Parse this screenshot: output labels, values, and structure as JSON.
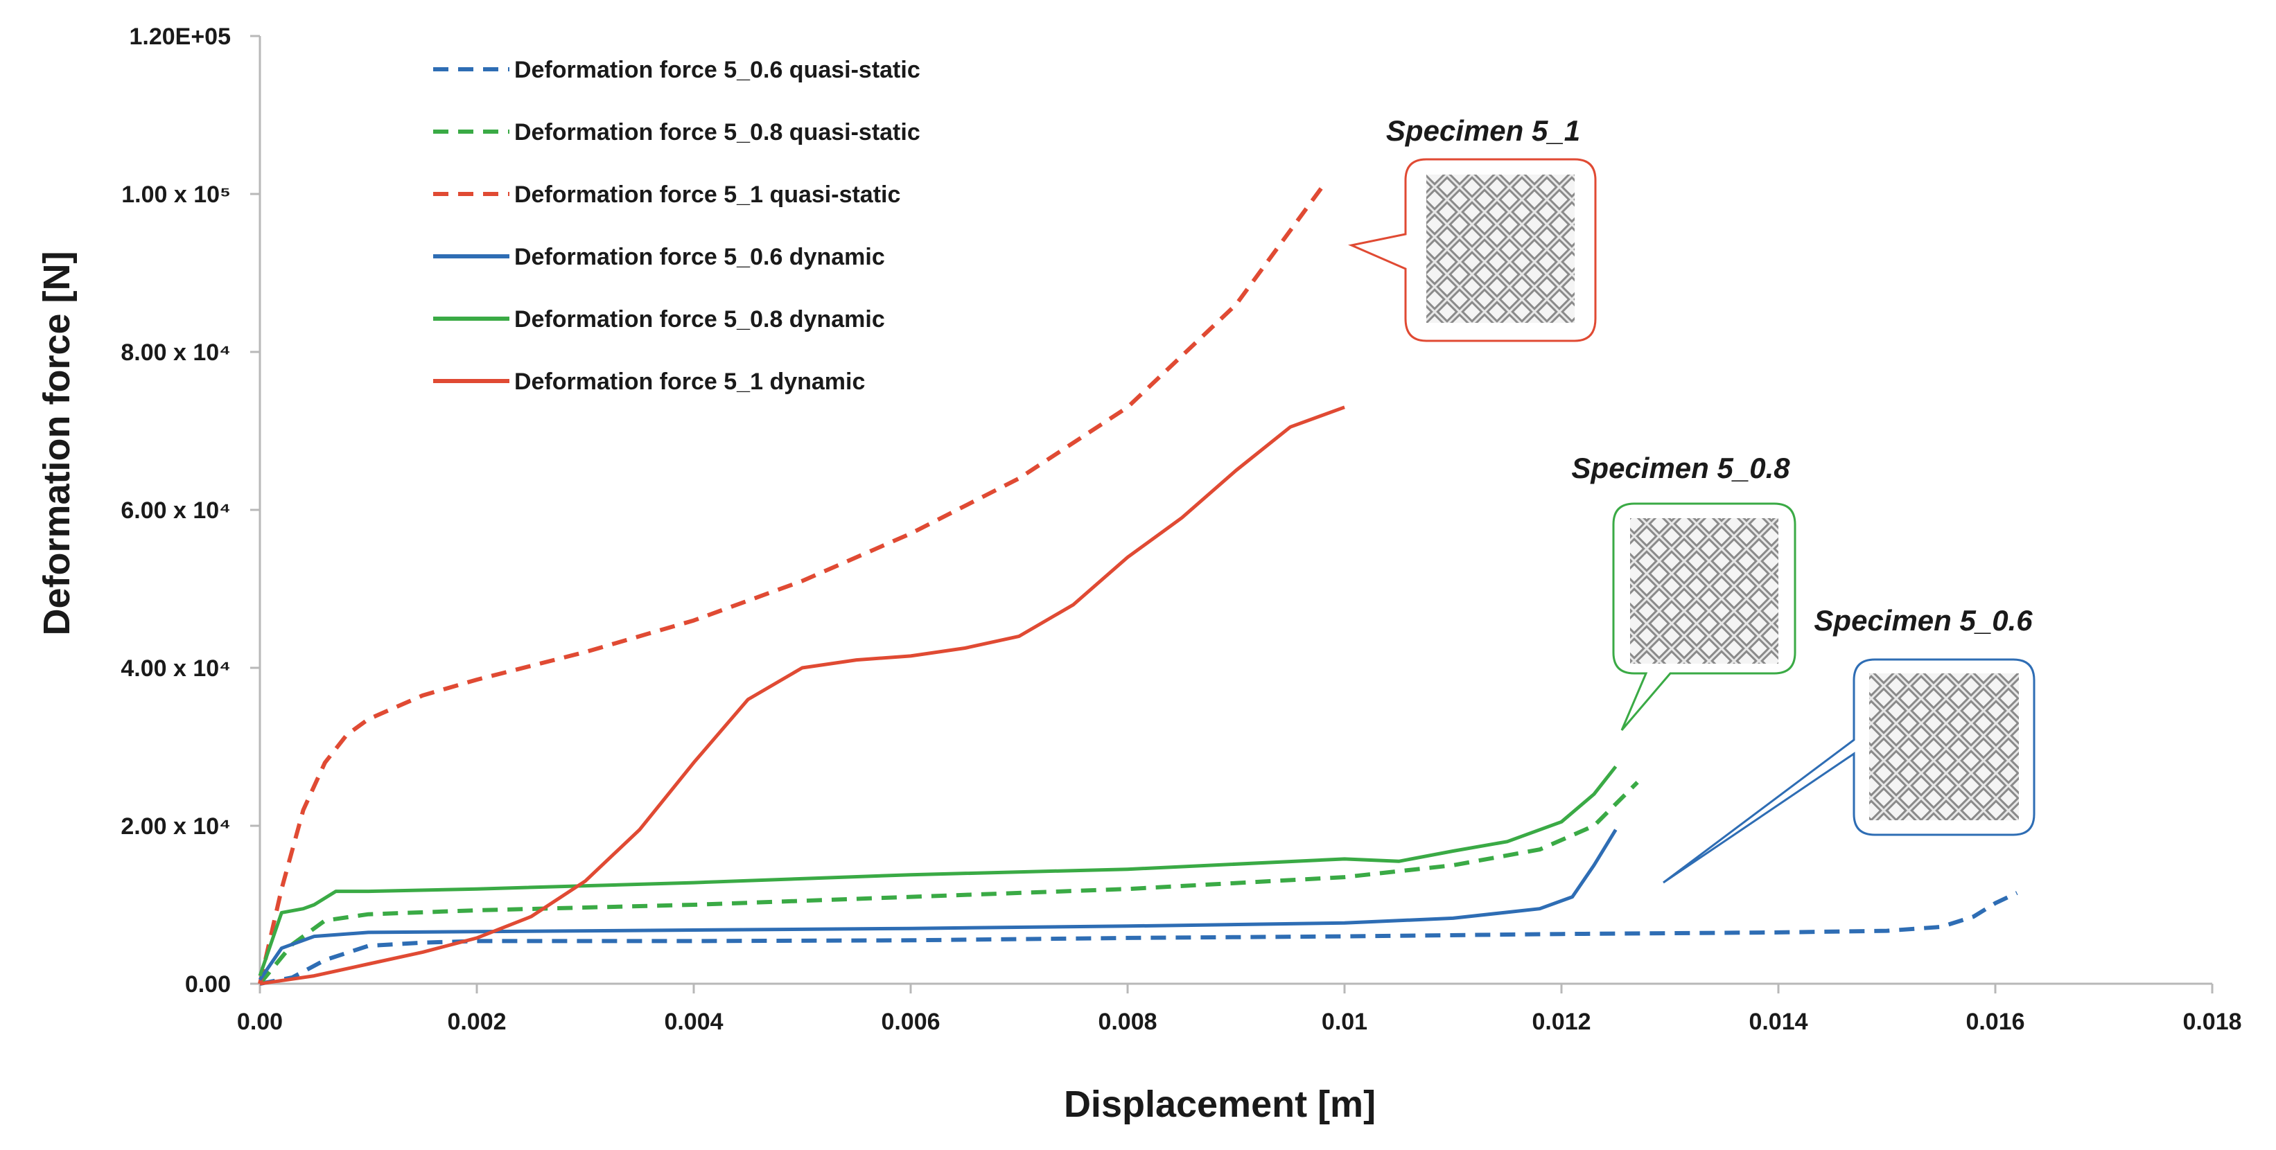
{
  "chart_data": {
    "type": "line",
    "title": "",
    "xlabel": "Displacement [m]",
    "ylabel": "Deformation force [N]",
    "xlim": [
      0,
      0.018
    ],
    "ylim": [
      0,
      120000
    ],
    "x_ticks": [
      {
        "value": 0,
        "label": "0.00"
      },
      {
        "value": 0.002,
        "label": "0.002"
      },
      {
        "value": 0.004,
        "label": "0.004"
      },
      {
        "value": 0.006,
        "label": "0.006"
      },
      {
        "value": 0.008,
        "label": "0.008"
      },
      {
        "value": 0.01,
        "label": "0.01"
      },
      {
        "value": 0.012,
        "label": "0.012"
      },
      {
        "value": 0.014,
        "label": "0.014"
      },
      {
        "value": 0.016,
        "label": "0.016"
      },
      {
        "value": 0.018,
        "label": "0.018"
      }
    ],
    "y_ticks": [
      {
        "value": 0,
        "label": "0.00"
      },
      {
        "value": 20000,
        "label": "2.00 x 10⁴"
      },
      {
        "value": 40000,
        "label": "4.00 x 10⁴"
      },
      {
        "value": 60000,
        "label": "6.00 x 10⁴"
      },
      {
        "value": 80000,
        "label": "8.00 x 10⁴"
      },
      {
        "value": 100000,
        "label": "1.00 x 10⁵"
      },
      {
        "value": 120000,
        "label": "1.20E+05"
      }
    ],
    "grid": false,
    "legend_position": "top-left",
    "series": [
      {
        "name": "Deformation force 5_0.6 quasi-static",
        "color": "#2e6db4",
        "style": "dashed",
        "x": [
          0,
          0.0003,
          0.0006,
          0.001,
          0.0015,
          0.002,
          0.004,
          0.006,
          0.008,
          0.01,
          0.012,
          0.014,
          0.015,
          0.0155,
          0.0158,
          0.016,
          0.0162
        ],
        "y": [
          0,
          800,
          3000,
          4800,
          5200,
          5400,
          5400,
          5500,
          5800,
          6000,
          6300,
          6500,
          6700,
          7200,
          8500,
          10200,
          11500
        ]
      },
      {
        "name": "Deformation force 5_0.8 quasi-static",
        "color": "#3aaa45",
        "style": "dashed",
        "x": [
          0,
          0.0003,
          0.0006,
          0.001,
          0.002,
          0.004,
          0.006,
          0.008,
          0.01,
          0.011,
          0.0118,
          0.0123,
          0.0127
        ],
        "y": [
          0,
          5000,
          8000,
          8800,
          9300,
          10000,
          11000,
          12000,
          13500,
          15000,
          17000,
          20000,
          25500
        ]
      },
      {
        "name": "Deformation force 5_1 quasi-static",
        "color": "#e04a33",
        "style": "dashed",
        "x": [
          0,
          0.0002,
          0.0004,
          0.0006,
          0.0008,
          0.001,
          0.0015,
          0.002,
          0.003,
          0.004,
          0.005,
          0.006,
          0.007,
          0.008,
          0.009,
          0.0098
        ],
        "y": [
          0,
          12000,
          22000,
          28000,
          31500,
          33500,
          36500,
          38500,
          42000,
          46000,
          51000,
          57000,
          64000,
          73000,
          86000,
          101000
        ]
      },
      {
        "name": "Deformation force 5_0.6 dynamic",
        "color": "#2e6db4",
        "style": "solid",
        "x": [
          0,
          0.0002,
          0.0005,
          0.001,
          0.002,
          0.004,
          0.006,
          0.008,
          0.01,
          0.011,
          0.0118,
          0.0121,
          0.0123,
          0.0125
        ],
        "y": [
          500,
          4500,
          6000,
          6500,
          6600,
          6800,
          7000,
          7300,
          7700,
          8300,
          9500,
          11000,
          15000,
          19500
        ]
      },
      {
        "name": "Deformation force 5_0.8 dynamic",
        "color": "#3aaa45",
        "style": "solid",
        "x": [
          0,
          0.0002,
          0.0004,
          0.0005,
          0.0007,
          0.001,
          0.002,
          0.004,
          0.006,
          0.008,
          0.01,
          0.0105,
          0.011,
          0.0115,
          0.012,
          0.0123,
          0.0125
        ],
        "y": [
          1000,
          9000,
          9500,
          10000,
          11700,
          11700,
          12000,
          12800,
          13800,
          14500,
          15800,
          15500,
          16800,
          18000,
          20500,
          24000,
          27500
        ]
      },
      {
        "name": "Deformation force 5_1 dynamic",
        "color": "#e04a33",
        "style": "solid",
        "x": [
          0,
          0.0005,
          0.001,
          0.0015,
          0.002,
          0.0025,
          0.003,
          0.0035,
          0.004,
          0.0045,
          0.005,
          0.0055,
          0.006,
          0.0065,
          0.007,
          0.0075,
          0.008,
          0.0085,
          0.009,
          0.0095,
          0.01
        ],
        "y": [
          0,
          1000,
          2500,
          4000,
          5800,
          8500,
          13000,
          19500,
          28000,
          36000,
          40000,
          41000,
          41500,
          42500,
          44000,
          48000,
          54000,
          59000,
          65000,
          70500,
          73000
        ]
      }
    ],
    "annotations": [
      {
        "text": "Specimen 5_1",
        "target": "Deformation force 5_1 quasi-static"
      },
      {
        "text": "Specimen 5_0.8",
        "target": "Deformation force 5_0.8 dynamic"
      },
      {
        "text": "Specimen 5_0.6",
        "target": "Deformation force 5_0.6 dynamic"
      }
    ]
  }
}
